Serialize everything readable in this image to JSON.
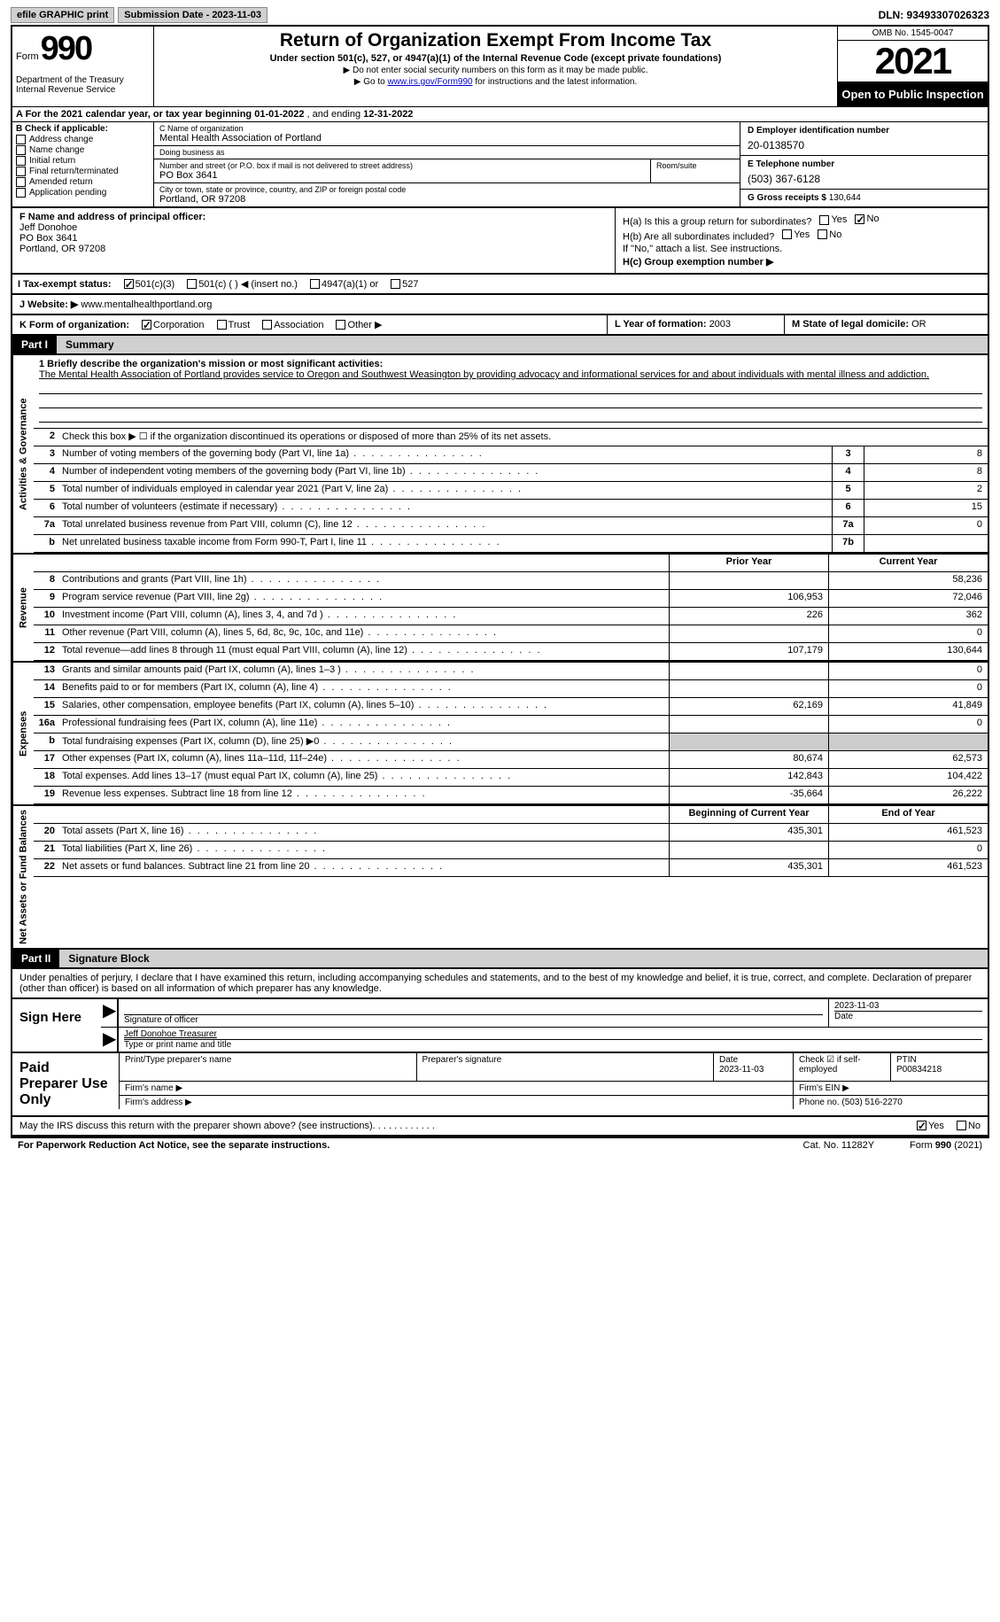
{
  "topbar": {
    "efile": "efile GRAPHIC print",
    "submission_label": "Submission Date - 2023-11-03",
    "dln_label": "DLN: 93493307026323"
  },
  "header": {
    "form_word": "Form",
    "form_num": "990",
    "dept": "Department of the Treasury Internal Revenue Service",
    "title": "Return of Organization Exempt From Income Tax",
    "subtitle": "Under section 501(c), 527, or 4947(a)(1) of the Internal Revenue Code (except private foundations)",
    "note1": "▶ Do not enter social security numbers on this form as it may be made public.",
    "note2_pre": "▶ Go to ",
    "note2_link": "www.irs.gov/Form990",
    "note2_post": " for instructions and the latest information.",
    "omb": "OMB No. 1545-0047",
    "year": "2021",
    "open": "Open to Public Inspection"
  },
  "row_a": {
    "label": "A For the 2021 calendar year, or tax year beginning ",
    "begin": "01-01-2022",
    "mid": " , and ending ",
    "end": "12-31-2022"
  },
  "section_b": {
    "label": "B Check if applicable:",
    "opts": [
      "Address change",
      "Name change",
      "Initial return",
      "Final return/terminated",
      "Amended return",
      "Application pending"
    ]
  },
  "section_c": {
    "name_label": "C Name of organization",
    "name": "Mental Health Association of Portland",
    "dba_label": "Doing business as",
    "dba": "",
    "street_label": "Number and street (or P.O. box if mail is not delivered to street address)",
    "street": "PO Box 3641",
    "room_label": "Room/suite",
    "room": "",
    "city_label": "City or town, state or province, country, and ZIP or foreign postal code",
    "city": "Portland, OR  97208"
  },
  "section_d": {
    "ein_label": "D Employer identification number",
    "ein": "20-0138570",
    "phone_label": "E Telephone number",
    "phone": "(503) 367-6128",
    "gross_label": "G Gross receipts $ ",
    "gross": "130,644"
  },
  "section_f": {
    "label": "F Name and address of principal officer:",
    "name": "Jeff Donohoe",
    "addr1": "PO Box 3641",
    "addr2": "Portland, OR  97208"
  },
  "section_h": {
    "ha": "H(a)  Is this a group return for subordinates?",
    "hb": "H(b)  Are all subordinates included?",
    "hb_note": "If \"No,\" attach a list. See instructions.",
    "hc": "H(c)  Group exemption number ▶",
    "yes": "Yes",
    "no": "No"
  },
  "row_i": {
    "label": "I  Tax-exempt status:",
    "o1": "501(c)(3)",
    "o2": "501(c) (  ) ◀ (insert no.)",
    "o3": "4947(a)(1) or",
    "o4": "527"
  },
  "row_j": {
    "label": "J  Website: ▶ ",
    "val": "www.mentalhealthportland.org"
  },
  "row_k": {
    "label": "K Form of organization:",
    "opts": [
      "Corporation",
      "Trust",
      "Association",
      "Other ▶"
    ],
    "l_label": "L Year of formation: ",
    "l_val": "2003",
    "m_label": "M State of legal domicile: ",
    "m_val": "OR"
  },
  "part1": {
    "num": "Part I",
    "title": "Summary"
  },
  "mission": {
    "label": "1   Briefly describe the organization's mission or most significant activities:",
    "text": "The Mental Health Association of Portland provides service to Oregon and Southwest Weasington by providing advocacy and informational services for and about individuals with mental illness and addiction."
  },
  "line2": "Check this box ▶ ☐ if the organization discontinued its operations or disposed of more than 25% of its net assets.",
  "lines_single": [
    {
      "n": "3",
      "d": "Number of voting members of the governing body (Part VI, line 1a)",
      "box": "3",
      "v": "8"
    },
    {
      "n": "4",
      "d": "Number of independent voting members of the governing body (Part VI, line 1b)",
      "box": "4",
      "v": "8"
    },
    {
      "n": "5",
      "d": "Total number of individuals employed in calendar year 2021 (Part V, line 2a)",
      "box": "5",
      "v": "2"
    },
    {
      "n": "6",
      "d": "Total number of volunteers (estimate if necessary)",
      "box": "6",
      "v": "15"
    },
    {
      "n": "7a",
      "d": "Total unrelated business revenue from Part VIII, column (C), line 12",
      "box": "7a",
      "v": "0"
    },
    {
      "n": "b",
      "d": "Net unrelated business taxable income from Form 990-T, Part I, line 11",
      "box": "7b",
      "v": ""
    }
  ],
  "col_headers": {
    "prior": "Prior Year",
    "curr": "Current Year"
  },
  "revenue": [
    {
      "n": "8",
      "d": "Contributions and grants (Part VIII, line 1h)",
      "p": "",
      "c": "58,236"
    },
    {
      "n": "9",
      "d": "Program service revenue (Part VIII, line 2g)",
      "p": "106,953",
      "c": "72,046"
    },
    {
      "n": "10",
      "d": "Investment income (Part VIII, column (A), lines 3, 4, and 7d )",
      "p": "226",
      "c": "362"
    },
    {
      "n": "11",
      "d": "Other revenue (Part VIII, column (A), lines 5, 6d, 8c, 9c, 10c, and 11e)",
      "p": "",
      "c": "0"
    },
    {
      "n": "12",
      "d": "Total revenue—add lines 8 through 11 (must equal Part VIII, column (A), line 12)",
      "p": "107,179",
      "c": "130,644"
    }
  ],
  "expenses": [
    {
      "n": "13",
      "d": "Grants and similar amounts paid (Part IX, column (A), lines 1–3 )",
      "p": "",
      "c": "0"
    },
    {
      "n": "14",
      "d": "Benefits paid to or for members (Part IX, column (A), line 4)",
      "p": "",
      "c": "0"
    },
    {
      "n": "15",
      "d": "Salaries, other compensation, employee benefits (Part IX, column (A), lines 5–10)",
      "p": "62,169",
      "c": "41,849"
    },
    {
      "n": "16a",
      "d": "Professional fundraising fees (Part IX, column (A), line 11e)",
      "p": "",
      "c": "0"
    },
    {
      "n": "b",
      "d": "Total fundraising expenses (Part IX, column (D), line 25) ▶0",
      "p": "SHADED",
      "c": "SHADED"
    },
    {
      "n": "17",
      "d": "Other expenses (Part IX, column (A), lines 11a–11d, 11f–24e)",
      "p": "80,674",
      "c": "62,573"
    },
    {
      "n": "18",
      "d": "Total expenses. Add lines 13–17 (must equal Part IX, column (A), line 25)",
      "p": "142,843",
      "c": "104,422"
    },
    {
      "n": "19",
      "d": "Revenue less expenses. Subtract line 18 from line 12",
      "p": "-35,664",
      "c": "26,222"
    }
  ],
  "net_headers": {
    "prior": "Beginning of Current Year",
    "curr": "End of Year"
  },
  "netassets": [
    {
      "n": "20",
      "d": "Total assets (Part X, line 16)",
      "p": "435,301",
      "c": "461,523"
    },
    {
      "n": "21",
      "d": "Total liabilities (Part X, line 26)",
      "p": "",
      "c": "0"
    },
    {
      "n": "22",
      "d": "Net assets or fund balances. Subtract line 21 from line 20",
      "p": "435,301",
      "c": "461,523"
    }
  ],
  "vtabs": {
    "act": "Activities & Governance",
    "rev": "Revenue",
    "exp": "Expenses",
    "net": "Net Assets or Fund Balances"
  },
  "part2": {
    "num": "Part II",
    "title": "Signature Block"
  },
  "sig_intro": "Under penalties of perjury, I declare that I have examined this return, including accompanying schedules and statements, and to the best of my knowledge and belief, it is true, correct, and complete. Declaration of preparer (other than officer) is based on all information of which preparer has any knowledge.",
  "sign": {
    "here": "Sign Here",
    "sig_officer": "Signature of officer",
    "date": "Date",
    "date_val": "2023-11-03",
    "name_title": "Jeff Donohoe  Treasurer",
    "type_name": "Type or print name and title"
  },
  "paid": {
    "title": "Paid Preparer Use Only",
    "print_name": "Print/Type preparer's name",
    "prep_sig": "Preparer's signature",
    "date_lbl": "Date",
    "date_val": "2023-11-03",
    "check_lbl": "Check ☑ if self-employed",
    "ptin_lbl": "PTIN",
    "ptin_val": "P00834218",
    "firm_name": "Firm's name  ▶",
    "firm_ein": "Firm's EIN ▶",
    "firm_addr": "Firm's address ▶",
    "phone_lbl": "Phone no. ",
    "phone_val": "(503) 516-2270"
  },
  "discuss": {
    "text": "May the IRS discuss this return with the preparer shown above? (see instructions)",
    "yes": "Yes",
    "no": "No"
  },
  "footer": {
    "pra": "For Paperwork Reduction Act Notice, see the separate instructions.",
    "cat": "Cat. No. 11282Y",
    "form": "Form 990 (2021)"
  }
}
